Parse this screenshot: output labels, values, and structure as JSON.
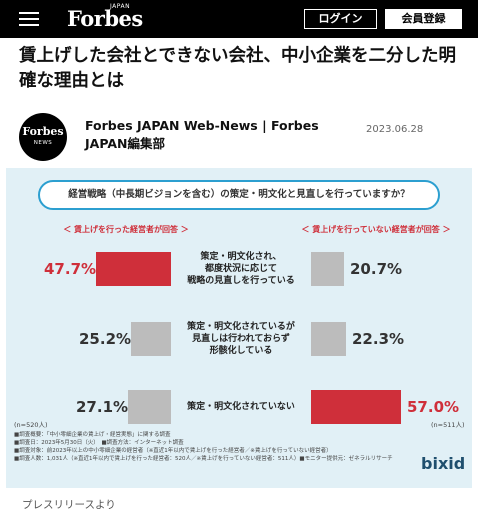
{
  "header": {
    "logo": "Forbes",
    "logo_sub": "JAPAN",
    "login_label": "ログイン",
    "signup_label": "会員登録",
    "menu_icon": "hamburger-menu-icon"
  },
  "article": {
    "title": "賃上げした会社とできない会社、中小企業を二分した明確な理由とは",
    "avatar_brand": "Forbes",
    "avatar_sub": "NEWS",
    "author": "Forbes JAPAN Web-News | Forbes JAPAN編集部",
    "date": "2023.06.28",
    "image_caption": "プレスリリースより"
  },
  "infographic": {
    "question": "経営戦略（中長期ビジョンを含む）の策定・明文化と見直しを行っていますか？",
    "group_left": "＜ 賃上げを行った経営者が回答 ＞",
    "group_right": "＜ 賃上げを行っていない経営者が回答 ＞",
    "rows": [
      {
        "label": "策定・明文化され、\n都度状況に応じて\n戦略の見直しを行っている",
        "left_value": 47.7,
        "left_text": "47.7%",
        "right_value": 20.7,
        "right_text": "20.7%"
      },
      {
        "label": "策定・明文化されているが\n見直しは行われておらず\n形骸化している",
        "left_value": 25.2,
        "left_text": "25.2%",
        "right_value": 22.3,
        "right_text": "22.3%"
      },
      {
        "label": "策定・明文化されていない",
        "left_value": 27.1,
        "left_text": "27.1%",
        "right_value": 57.0,
        "right_text": "57.0%"
      }
    ],
    "sample_left": "(n=520人)",
    "sample_right": "(n=511人)",
    "notes": [
      "■調査概要：「中小零細企業の賃上げ・経営実態」に関する調査",
      "■調査日：2023年5月30日（火）　■調査方法：インターネット調査",
      "■調査対象：前2023年以上の中小零細企業の経営者（※直近1年以内で賃上げを行った経営者／※賃上げを行っていない経営者）",
      "■調査人数：1,031人（※直近1年以内で賃上げを行った経営者：520人／※賃上げを行っていない経営者：511人）■モニター提供元：ゼネラルリサーチ"
    ],
    "brand": "bixid",
    "colors": {
      "highlight": "#cf2f3a",
      "neutral": "#bcbcbc",
      "background": "#e1f0f6",
      "accent": "#2c9fd0"
    }
  }
}
